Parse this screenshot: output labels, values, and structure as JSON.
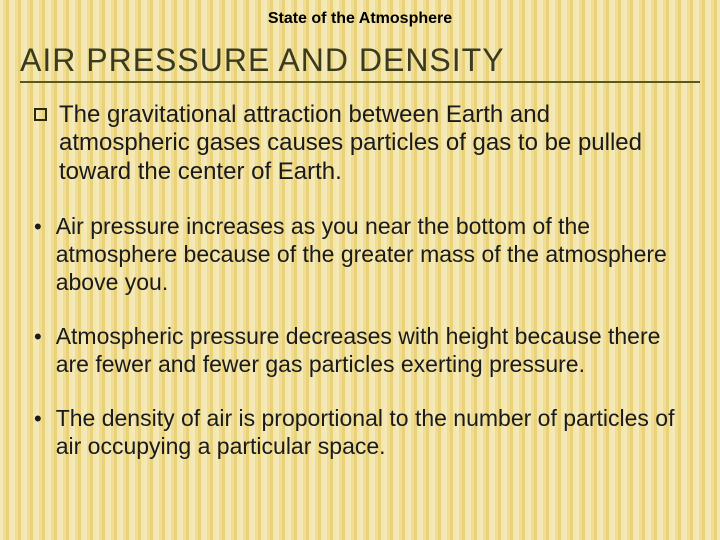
{
  "header": {
    "text": "State of the Atmosphere"
  },
  "title": "AIR PRESSURE AND DENSITY",
  "lead": "The gravitational attraction between Earth and atmospheric gases causes particles of gas to be pulled toward the center of Earth.",
  "bullets": [
    "Air pressure increases as you near the bottom of the atmosphere because of the greater mass of the atmosphere above you.",
    "Atmospheric pressure decreases with height because there are fewer and fewer gas particles exerting pressure.",
    "The density of air is proportional to the number of particles of air occupying a particular space."
  ],
  "style": {
    "background_stripe_colors": [
      "#f5e9b8",
      "#efdd95",
      "#e9d27a",
      "#f3e7b0"
    ],
    "title_color": "#3a3a1f",
    "title_underline_color": "#585820",
    "body_text_color": "#1a1a1a",
    "title_fontsize": 32,
    "lead_fontsize": 24,
    "bullet_fontsize": 23,
    "header_fontsize": 16
  }
}
